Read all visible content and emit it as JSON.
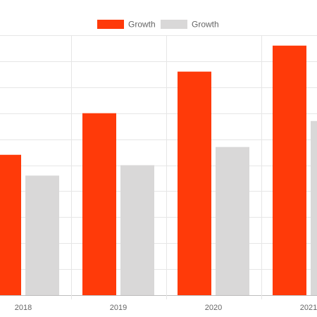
{
  "chart_data": {
    "type": "bar",
    "title": "",
    "xlabel": "",
    "ylabel": "",
    "categories": [
      "2018",
      "2019",
      "2020",
      "2021"
    ],
    "series": [
      {
        "name": "Growth",
        "color": "#ff3a09",
        "values": [
          54,
          70,
          86,
          96
        ]
      },
      {
        "name": "Growth",
        "color": "#d9d8d8",
        "values": [
          46,
          50,
          57,
          67
        ]
      }
    ],
    "ylim": [
      0,
      100
    ],
    "grid": true,
    "legend": "top-center"
  }
}
